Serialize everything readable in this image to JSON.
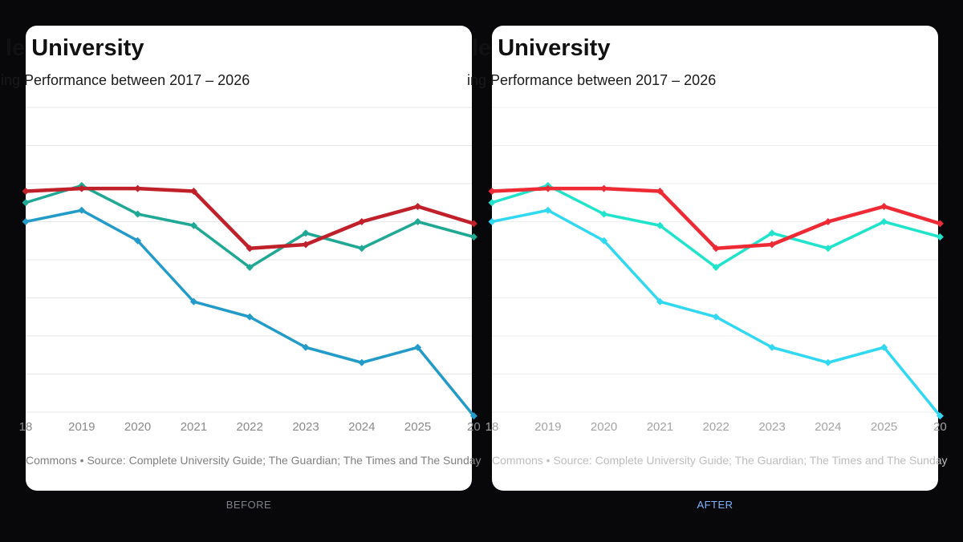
{
  "panels": [
    {
      "id": "before",
      "caption": "BEFORE",
      "title": "le University",
      "subtitle": "ing Performance between 2017 – 2026",
      "source": "Commons • Source: Complete University Guide; The Guardian; The Times and The Sunday",
      "colors": {
        "series_1": "#c0202a",
        "series_2": "#1fa893",
        "series_3": "#239bc9",
        "grid": "#e6e6e6"
      }
    },
    {
      "id": "after",
      "caption": "AFTER",
      "title": "le University",
      "subtitle": "ing Performance between 2017 – 2026",
      "source": "Commons • Source: Complete University Guide; The Guardian; The Times and The Sunday",
      "colors": {
        "series_1": "#ee2a35",
        "series_2": "#20e3cc",
        "series_3": "#30d8f2",
        "grid": "#eeeeee"
      }
    }
  ],
  "chart_data": {
    "type": "line",
    "x": [
      "18",
      "2019",
      "2020",
      "2021",
      "2022",
      "2023",
      "2024",
      "2025",
      "20"
    ],
    "xlabel": "",
    "ylabel": "",
    "y_ticks_labeled": false,
    "grid": "horizontal",
    "ylim": [
      0,
      8
    ],
    "series": [
      {
        "values": [
          5.8,
          5.87,
          5.87,
          5.8,
          4.3,
          4.4,
          5.0,
          5.4,
          4.95
        ]
      },
      {
        "values": [
          5.5,
          5.95,
          5.2,
          4.9,
          3.8,
          4.7,
          4.3,
          5.0,
          4.6
        ]
      },
      {
        "values": [
          5.0,
          5.3,
          4.5,
          2.9,
          2.5,
          1.7,
          1.3,
          1.7,
          -0.1
        ]
      }
    ]
  }
}
